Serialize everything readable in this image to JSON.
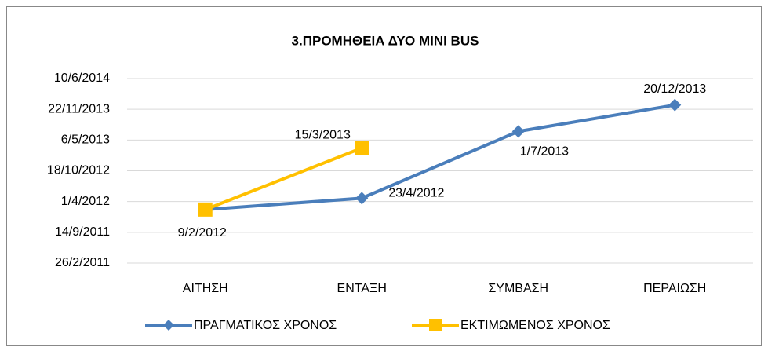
{
  "chart_data": {
    "type": "line",
    "title": "3.ΠΡΟΜΗΘΕΙΑ ΔΥΟ MINI BUS",
    "categories": [
      "ΑΙΤΗΣΗ",
      "ΕΝΤΑΞΗ",
      "ΣΥΜΒΑΣΗ",
      "ΠΕΡΑΙΩΣΗ"
    ],
    "series": [
      {
        "name": "ΠΡΑΓΜΑΤΙΚΟΣ ΧΡΟΝΟΣ",
        "color": "#4a7ebb",
        "marker": "diamond",
        "values": [
          40948,
          41022,
          41456,
          41628
        ],
        "value_labels": [
          "9/2/2012",
          "23/4/2012",
          "1/7/2013",
          "20/12/2013"
        ]
      },
      {
        "name": "ΕΚΤΙΜΩΜΕΝΟΣ ΧΡΟΝΟΣ",
        "color": "#ffc000",
        "marker": "square",
        "values": [
          40948,
          41348,
          null,
          null
        ],
        "value_labels": [
          null,
          "15/3/2013",
          null,
          null
        ]
      }
    ],
    "ylim": [
      40600,
      41800
    ],
    "yticks": [
      {
        "value": 40600,
        "label": "26/2/2011"
      },
      {
        "value": 40800,
        "label": "14/9/2011"
      },
      {
        "value": 41000,
        "label": "1/4/2012"
      },
      {
        "value": 41200,
        "label": "18/10/2012"
      },
      {
        "value": 41400,
        "label": "6/5/2013"
      },
      {
        "value": 41600,
        "label": "22/11/2013"
      },
      {
        "value": 41800,
        "label": "10/6/2014"
      }
    ],
    "grid": true
  }
}
